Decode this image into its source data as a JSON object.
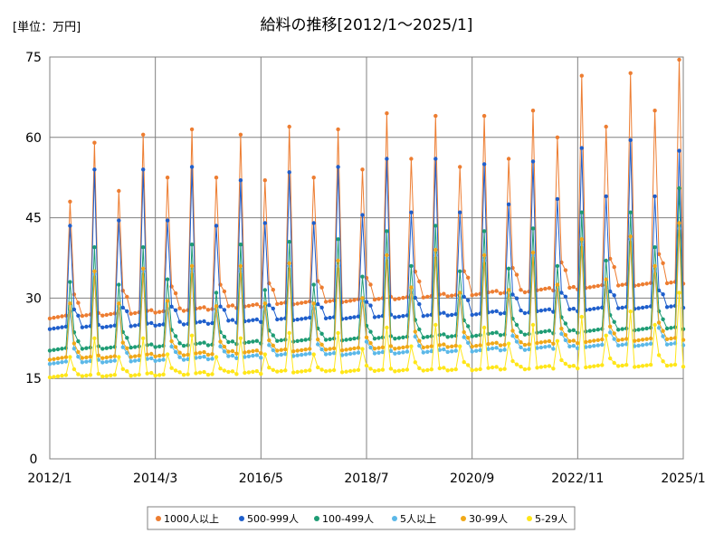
{
  "chart_data": {
    "type": "line",
    "title": "給料の推移[2012/1〜2025/1]",
    "unit_label": "[単位：万円]",
    "xlabel": "",
    "ylabel": "",
    "x_start": "2012-01",
    "x_end": "2025-01",
    "x_tick_labels": [
      "2012/1",
      "2014/3",
      "2016/5",
      "2018/7",
      "2020/9",
      "2022/11",
      "2025/1"
    ],
    "ylim": [
      0,
      75
    ],
    "y_ticks": [
      0,
      15,
      30,
      45,
      60,
      75
    ],
    "grid": true,
    "legend_position": "bottom",
    "series": [
      {
        "name": "1000人以上",
        "color": "#ED7D31",
        "base": 26.5,
        "base_end": 33.0,
        "june_peaks": [
          48,
          50,
          52.5,
          52.5,
          52,
          52.5,
          54,
          56,
          54.5,
          56,
          60,
          62,
          65
        ],
        "dec_peaks": [
          59,
          60.5,
          61.5,
          60.5,
          62,
          61.5,
          64.5,
          64,
          64,
          65,
          71.5,
          72,
          74.5
        ],
        "jul_factor": 0.72
      },
      {
        "name": "500-999人",
        "color": "#1F5FCC",
        "base": 24.5,
        "base_end": 28.5,
        "june_peaks": [
          43.5,
          44.5,
          44.5,
          43.5,
          44,
          44,
          45.5,
          46,
          46,
          47.5,
          48.5,
          49,
          49
        ],
        "dec_peaks": [
          54,
          54,
          54.5,
          52,
          53.5,
          54.5,
          56,
          56,
          55,
          55.5,
          58,
          59.5,
          57.5
        ],
        "jul_factor": 0.7
      },
      {
        "name": "100-499人",
        "color": "#1E9C74",
        "base": 20.5,
        "base_end": 24.5,
        "june_peaks": [
          33,
          32.5,
          33.5,
          31,
          31.5,
          32.5,
          34,
          36,
          35,
          35.5,
          36,
          37,
          39.5
        ],
        "dec_peaks": [
          39.5,
          39.5,
          40,
          40,
          40.5,
          41,
          42.5,
          43.5,
          42.5,
          43,
          46,
          46,
          50.5
        ],
        "jul_factor": 0.78
      },
      {
        "name": "5人以上",
        "color": "#5BB8E8",
        "base": 18.0,
        "base_end": 21.5,
        "june_peaks": [
          27.5,
          28,
          28,
          27.5,
          28,
          28,
          29.5,
          31,
          30,
          30.5,
          31.5,
          32,
          35
        ],
        "dec_peaks": [
          34.5,
          35,
          35,
          35,
          36,
          36,
          37.5,
          38,
          37,
          38,
          40,
          41,
          43
        ],
        "jul_factor": 0.8
      },
      {
        "name": "30-99人",
        "color": "#F0A818",
        "base": 18.8,
        "base_end": 22.5,
        "june_peaks": [
          29,
          29,
          29.5,
          28.5,
          29,
          29,
          30,
          32,
          31,
          31.5,
          32.5,
          33.5,
          36
        ],
        "dec_peaks": [
          35,
          35.5,
          36,
          36,
          36.5,
          37,
          38,
          39,
          38,
          38.5,
          41,
          41.5,
          44
        ],
        "jul_factor": 0.8
      },
      {
        "name": "5-29人",
        "color": "#FFE619",
        "base": 15.5,
        "base_end": 17.5,
        "june_peaks": [
          19,
          19,
          19.5,
          19,
          19.5,
          19.5,
          20.5,
          21,
          21,
          21.5,
          22,
          23,
          25
        ],
        "dec_peaks": [
          22.5,
          22.5,
          23,
          22.5,
          23.5,
          23.5,
          24.5,
          25,
          24.5,
          25,
          26.5,
          27.5,
          31
        ],
        "jul_factor": 0.85
      }
    ]
  }
}
